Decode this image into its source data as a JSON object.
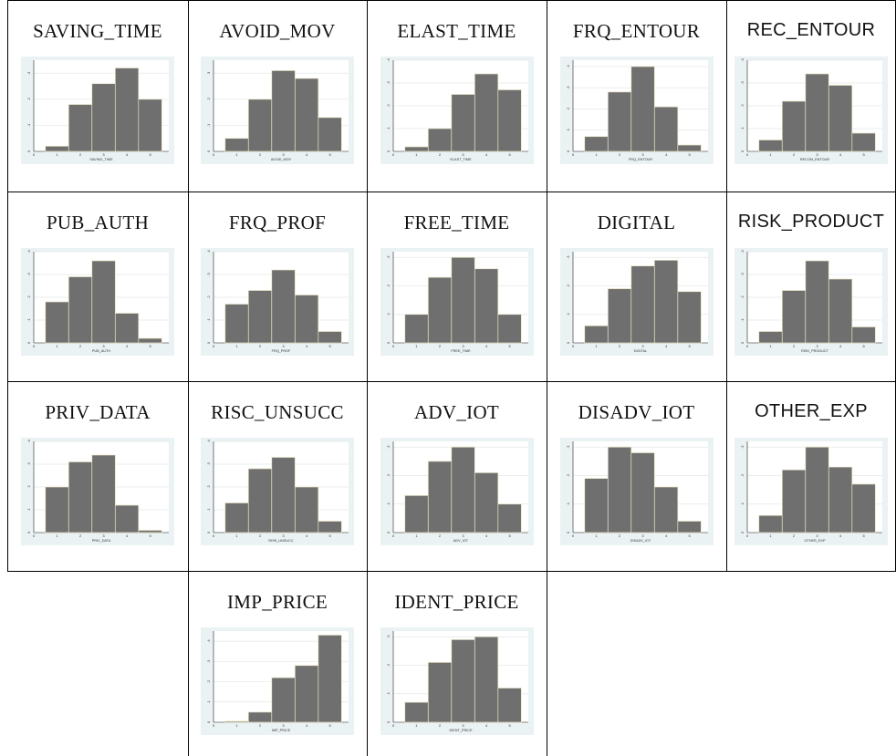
{
  "chart_data": [
    {
      "type": "bar",
      "title": "SAVING_TIME",
      "xlabel": "SAVING_TIME",
      "categories": [
        "1",
        "2",
        "3",
        "4",
        "5"
      ],
      "values": [
        0.02,
        0.18,
        0.26,
        0.32,
        0.2
      ],
      "yticks": [
        "0",
        ".1",
        ".2",
        ".3"
      ],
      "ylim": [
        0,
        0.35
      ]
    },
    {
      "type": "bar",
      "title": "AVOID_MOV",
      "xlabel": "AVOID_MOV",
      "categories": [
        "1",
        "2",
        "3",
        "4",
        "5"
      ],
      "values": [
        0.05,
        0.2,
        0.31,
        0.28,
        0.13
      ],
      "yticks": [
        "0",
        ".1",
        ".2",
        ".3"
      ],
      "ylim": [
        0,
        0.35
      ]
    },
    {
      "type": "bar",
      "title": "ELAST_TIME",
      "xlabel": "ELAST_TIME",
      "categories": [
        "1",
        "2",
        "3",
        "4",
        "5"
      ],
      "values": [
        0.02,
        0.1,
        0.25,
        0.34,
        0.27
      ],
      "yticks": [
        "0",
        ".1",
        ".2",
        ".3",
        ".4"
      ],
      "ylim": [
        0,
        0.4
      ]
    },
    {
      "type": "bar",
      "title": "FRQ_ENTOUR",
      "xlabel": "FRQ_ENTOUR",
      "categories": [
        "1",
        "2",
        "3",
        "4",
        "5"
      ],
      "values": [
        0.07,
        0.28,
        0.4,
        0.21,
        0.03
      ],
      "yticks": [
        "0",
        ".1",
        ".2",
        ".3",
        ".4"
      ],
      "ylim": [
        0,
        0.43
      ]
    },
    {
      "type": "bar",
      "title": "REC_ENTOUR",
      "xlabel": "RECOM_ENTOUR",
      "categories": [
        "1",
        "2",
        "3",
        "4",
        "5"
      ],
      "values": [
        0.05,
        0.22,
        0.34,
        0.29,
        0.08
      ],
      "yticks": [
        "0",
        ".1",
        ".2",
        ".3",
        ".4"
      ],
      "ylim": [
        0,
        0.4
      ]
    },
    {
      "type": "bar",
      "title": "PUB_AUTH",
      "xlabel": "PUB_AUTH",
      "categories": [
        "1",
        "2",
        "3",
        "4",
        "5"
      ],
      "values": [
        0.18,
        0.29,
        0.36,
        0.13,
        0.02
      ],
      "yticks": [
        "0",
        ".1",
        ".2",
        ".3",
        ".4"
      ],
      "ylim": [
        0,
        0.4
      ]
    },
    {
      "type": "bar",
      "title": "FRQ_PROF",
      "xlabel": "FRQ_PROF",
      "categories": [
        "1",
        "2",
        "3",
        "4",
        "5"
      ],
      "values": [
        0.17,
        0.23,
        0.32,
        0.21,
        0.05
      ],
      "yticks": [
        "0",
        ".1",
        ".2",
        ".3",
        ".4"
      ],
      "ylim": [
        0,
        0.4
      ]
    },
    {
      "type": "bar",
      "title": "FREE_TIME",
      "xlabel": "FREE_TIME",
      "categories": [
        "1",
        "2",
        "3",
        "4",
        "5"
      ],
      "values": [
        0.1,
        0.23,
        0.3,
        0.26,
        0.1
      ],
      "yticks": [
        "0",
        ".1",
        ".2",
        ".3"
      ],
      "ylim": [
        0,
        0.32
      ]
    },
    {
      "type": "bar",
      "title": "DIGITAL",
      "xlabel": "DIGITAL",
      "categories": [
        "1",
        "2",
        "3",
        "4",
        "5"
      ],
      "values": [
        0.06,
        0.19,
        0.27,
        0.29,
        0.18
      ],
      "yticks": [
        "0",
        ".1",
        ".2",
        ".3"
      ],
      "ylim": [
        0,
        0.32
      ]
    },
    {
      "type": "bar",
      "title": "RISK_PRODUCT",
      "xlabel": "RISK_PRODUCT",
      "categories": [
        "1",
        "2",
        "3",
        "4",
        "5"
      ],
      "values": [
        0.05,
        0.23,
        0.36,
        0.28,
        0.07
      ],
      "yticks": [
        "0",
        ".1",
        ".2",
        ".3",
        ".4"
      ],
      "ylim": [
        0,
        0.4
      ]
    },
    {
      "type": "bar",
      "title": "PRIV_DATA",
      "xlabel": "PRIV_DATA",
      "categories": [
        "1",
        "2",
        "3",
        "4",
        "5"
      ],
      "values": [
        0.2,
        0.31,
        0.34,
        0.12,
        0.01
      ],
      "yticks": [
        "0",
        ".1",
        ".2",
        ".3",
        ".4"
      ],
      "ylim": [
        0,
        0.4
      ]
    },
    {
      "type": "bar",
      "title": "RISC_UNSUCC",
      "xlabel": "RISK_UNSUCC",
      "categories": [
        "1",
        "2",
        "3",
        "4",
        "5"
      ],
      "values": [
        0.13,
        0.28,
        0.33,
        0.2,
        0.05
      ],
      "yticks": [
        "0",
        ".1",
        ".2",
        ".3",
        ".4"
      ],
      "ylim": [
        0,
        0.4
      ]
    },
    {
      "type": "bar",
      "title": "ADV_IOT",
      "xlabel": "ADV_IOT",
      "categories": [
        "1",
        "2",
        "3",
        "4",
        "5"
      ],
      "values": [
        0.13,
        0.25,
        0.3,
        0.21,
        0.1
      ],
      "yticks": [
        "0",
        ".1",
        ".2",
        ".3"
      ],
      "ylim": [
        0,
        0.32
      ]
    },
    {
      "type": "bar",
      "title": "DISADV_IOT",
      "xlabel": "DISADV_IOT",
      "categories": [
        "1",
        "2",
        "3",
        "4",
        "5"
      ],
      "values": [
        0.19,
        0.3,
        0.28,
        0.16,
        0.04
      ],
      "yticks": [
        "0",
        ".1",
        ".2",
        ".3"
      ],
      "ylim": [
        0,
        0.32
      ]
    },
    {
      "type": "bar",
      "title": "OTHER_EXP",
      "xlabel": "OTHER_EXP",
      "categories": [
        "1",
        "2",
        "3",
        "4",
        "5"
      ],
      "values": [
        0.06,
        0.22,
        0.3,
        0.23,
        0.17
      ],
      "yticks": [
        "0",
        ".1",
        ".2",
        ".3"
      ],
      "ylim": [
        0,
        0.32
      ]
    },
    {
      "type": "bar",
      "title": "IMP_PRICE",
      "xlabel": "IMP_PRICE",
      "categories": [
        "1",
        "2",
        "3",
        "4",
        "5"
      ],
      "values": [
        0.005,
        0.05,
        0.22,
        0.28,
        0.43
      ],
      "yticks": [
        "0",
        ".1",
        ".2",
        ".3",
        ".4"
      ],
      "ylim": [
        0,
        0.45
      ]
    },
    {
      "type": "bar",
      "title": "IDENT_PRICE",
      "xlabel": "IDENT_PRICE",
      "categories": [
        "1",
        "2",
        "3",
        "4",
        "5"
      ],
      "values": [
        0.07,
        0.21,
        0.29,
        0.3,
        0.12
      ],
      "yticks": [
        "0",
        ".1",
        ".2",
        ".3"
      ],
      "ylim": [
        0,
        0.32
      ]
    }
  ]
}
